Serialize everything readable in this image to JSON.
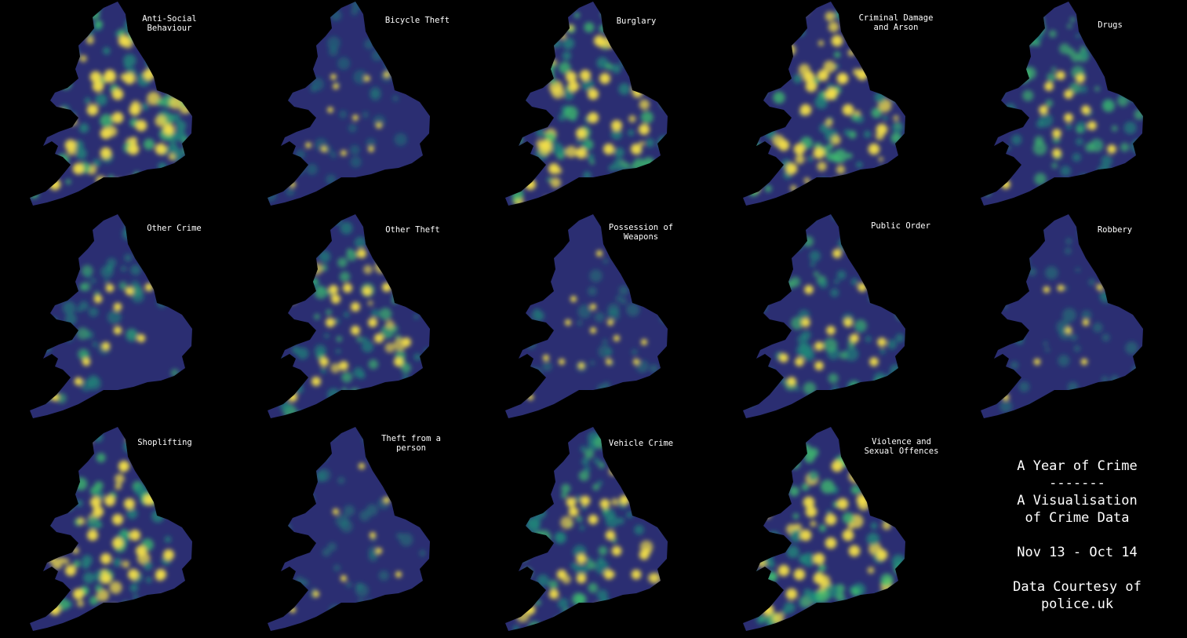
{
  "panels": [
    {
      "title": "Anti-Social\nBehaviour",
      "intensity": 0.85
    },
    {
      "title": "Bicycle Theft",
      "intensity": 0.15
    },
    {
      "title": "Burglary",
      "intensity": 0.8
    },
    {
      "title": "Criminal Damage\nand Arson",
      "intensity": 0.85
    },
    {
      "title": "Drugs",
      "intensity": 0.55
    },
    {
      "title": "Other Crime",
      "intensity": 0.45
    },
    {
      "title": "Other Theft",
      "intensity": 0.6
    },
    {
      "title": "Possession of\nWeapons",
      "intensity": 0.2
    },
    {
      "title": "Public Order",
      "intensity": 0.55
    },
    {
      "title": "Robbery",
      "intensity": 0.25
    },
    {
      "title": "Shoplifting",
      "intensity": 0.8
    },
    {
      "title": "Theft from a\nperson",
      "intensity": 0.2
    },
    {
      "title": "Vehicle Crime",
      "intensity": 0.65
    },
    {
      "title": "Violence and\nSexual Offences",
      "intensity": 0.85
    }
  ],
  "info": {
    "title": "A Year of Crime",
    "separator": "-------",
    "subtitle": "A Visualisation\nof Crime Data",
    "period": "Nov 13 - Oct 14",
    "credit": "Data Courtesy of\npolice.uk"
  },
  "colors": {
    "background": "#000000",
    "land_low": "#2b2e72",
    "mid": "#1f8a7a",
    "high": "#3fbf6e",
    "hotspot": "#f2de4a",
    "text": "#ffffff"
  }
}
